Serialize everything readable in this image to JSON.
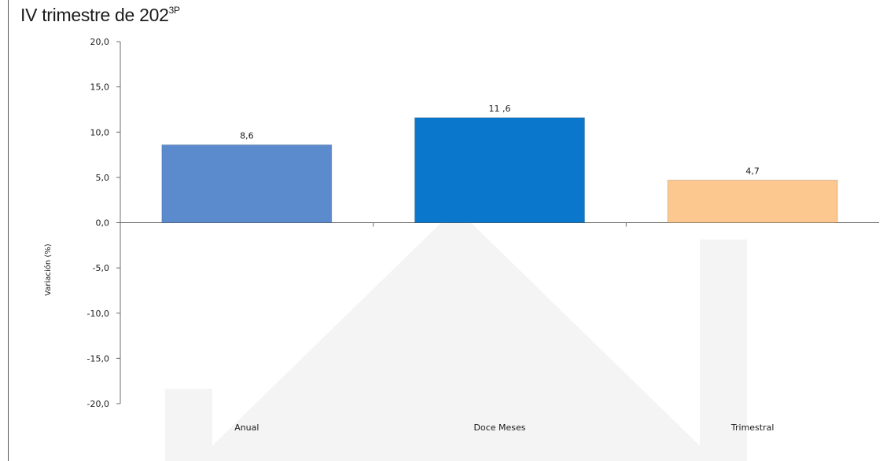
{
  "page": {
    "title": "IV trimestre de 202",
    "title_suffix": "3P"
  },
  "chart_data": {
    "type": "bar",
    "title": "IV trimestre de 2023P",
    "ylabel": "Variación (%)",
    "xlabel": "",
    "categories": [
      "Anual",
      "Doce Meses",
      "Trimestral"
    ],
    "values": [
      8.6,
      11.6,
      4.7
    ],
    "value_labels": [
      "8,6",
      "11 ,6",
      "4,7"
    ],
    "ylim": [
      -20,
      20
    ],
    "yticks": [
      20,
      15,
      10,
      5,
      0,
      -5,
      -10,
      -15,
      -20
    ],
    "ytick_labels": [
      "20,0",
      "15,0",
      "10,0",
      "5,0",
      "0,0",
      "-5,0",
      "-10,0",
      "-15,0",
      "-20,0"
    ],
    "colors": [
      "#5b8bcd",
      "#0a77cc",
      "#fcc88f"
    ],
    "grid": false,
    "legend": "none"
  }
}
